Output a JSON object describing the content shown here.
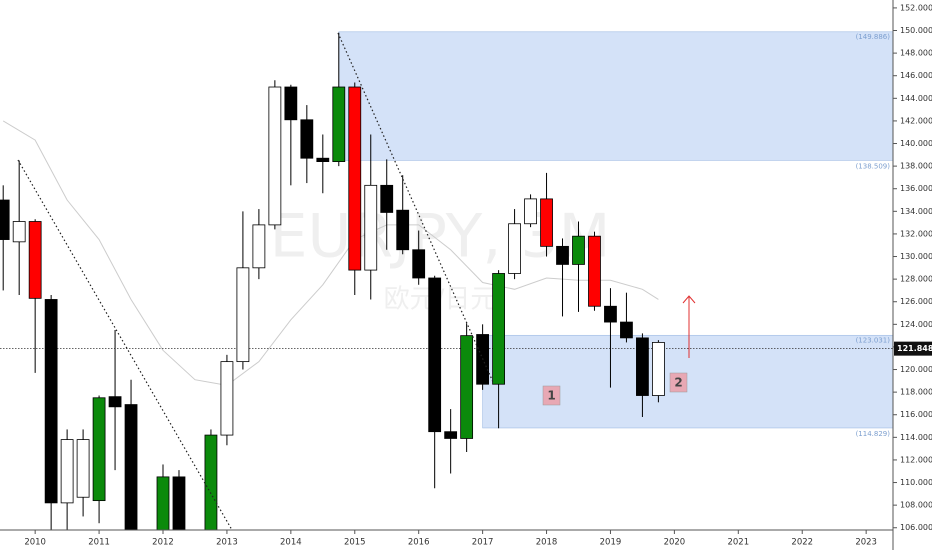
{
  "chart_data": {
    "type": "candlestick",
    "title": "EURJPY, 3M",
    "subtitle": "欧元/日元",
    "annotations": [
      "1",
      "2"
    ],
    "x": [
      2009.5,
      2009.75,
      2010.0,
      2010.25,
      2010.5,
      2010.75,
      2011.0,
      2011.25,
      2011.5,
      2012.0,
      2012.25,
      2012.75,
      2013.0,
      2013.25,
      2013.5,
      2013.75,
      2014.0,
      2014.25,
      2014.5,
      2014.75,
      2015.0,
      2015.25,
      2015.5,
      2015.75,
      2016.0,
      2016.25,
      2016.5,
      2016.75,
      2017.0,
      2017.25,
      2017.5,
      2017.75,
      2018.0,
      2018.25,
      2018.5,
      2018.75,
      2019.0,
      2019.25,
      2019.5,
      2019.75
    ],
    "open": [
      135.0,
      131.3,
      133.1,
      126.2,
      108.2,
      108.7,
      108.4,
      117.6,
      116.9,
      105.0,
      110.5,
      105.0,
      114.2,
      120.7,
      129.0,
      132.8,
      145.0,
      142.1,
      138.7,
      138.4,
      145.0,
      128.8,
      136.3,
      134.1,
      130.6,
      128.1,
      114.5,
      113.9,
      123.1,
      118.7,
      128.5,
      132.9,
      135.1,
      130.9,
      129.3,
      131.8,
      125.6,
      124.2,
      122.8,
      117.7
    ],
    "high": [
      136.3,
      138.5,
      133.3,
      126.6,
      114.7,
      114.7,
      117.7,
      123.5,
      119.1,
      111.6,
      111.1,
      114.7,
      121.3,
      134.0,
      134.2,
      145.6,
      145.2,
      143.4,
      140.8,
      149.8,
      145.4,
      140.8,
      138.6,
      137.2,
      132.3,
      128.3,
      116.5,
      124.1,
      124.0,
      128.8,
      134.2,
      135.5,
      137.4,
      131.6,
      133.1,
      132.2,
      127.2,
      126.8,
      123.2,
      122.6
    ],
    "low": [
      127.0,
      126.6,
      119.7,
      105.5,
      105.0,
      107.0,
      106.4,
      111.1,
      104.0,
      104.0,
      104.0,
      104.0,
      113.3,
      120.0,
      128.0,
      132.4,
      136.3,
      136.5,
      135.6,
      138.0,
      126.6,
      126.2,
      130.6,
      130.2,
      127.5,
      109.5,
      110.8,
      112.7,
      118.2,
      114.8,
      128.0,
      132.6,
      130.0,
      124.7,
      125.1,
      125.2,
      118.4,
      122.4,
      115.8,
      117.1
    ],
    "close": [
      131.5,
      133.1,
      126.3,
      108.2,
      113.8,
      113.8,
      117.5,
      116.7,
      105.0,
      110.5,
      105.0,
      114.2,
      120.7,
      129.0,
      132.8,
      145.0,
      142.1,
      138.7,
      138.4,
      145.0,
      128.8,
      136.3,
      133.9,
      130.6,
      128.1,
      114.5,
      113.9,
      123.0,
      118.7,
      128.5,
      132.9,
      135.1,
      130.9,
      129.3,
      131.8,
      125.6,
      124.2,
      122.8,
      117.7,
      122.4
    ],
    "colors": [
      "#000000",
      "#ffffff",
      "#ff0000",
      "#000000",
      "#ffffff",
      "#ffffff",
      "#0b8a0b",
      "#000000",
      "#000000",
      "#0b8a0b",
      "#000000",
      "#0b8a0b",
      "#ffffff",
      "#ffffff",
      "#ffffff",
      "#ffffff",
      "#000000",
      "#000000",
      "#000000",
      "#0b8a0b",
      "#ff0000",
      "#ffffff",
      "#000000",
      "#000000",
      "#000000",
      "#000000",
      "#000000",
      "#0b8a0b",
      "#000000",
      "#0b8a0b",
      "#ffffff",
      "#ffffff",
      "#ff0000",
      "#000000",
      "#0b8a0b",
      "#ff0000",
      "#000000",
      "#000000",
      "#000000",
      "#ffffff"
    ],
    "ma": {
      "color": "#cccccc",
      "x": [
        2009.5,
        2010.0,
        2010.5,
        2011.0,
        2011.5,
        2012.0,
        2012.5,
        2013.0,
        2013.5,
        2014.0,
        2014.5,
        2015.0,
        2015.5,
        2016.0,
        2016.5,
        2017.0,
        2017.5,
        2018.0,
        2018.5,
        2019.0,
        2019.5,
        2019.75
      ],
      "values": [
        142.0,
        140.3,
        135.0,
        131.5,
        126.2,
        121.7,
        119.1,
        118.6,
        120.7,
        124.4,
        127.5,
        131.5,
        132.8,
        132.8,
        130.6,
        127.7,
        127.1,
        128.1,
        127.9,
        127.9,
        127.1,
        126.2
      ]
    },
    "zones": [
      {
        "top": 149.886,
        "bottom": 138.509,
        "start": 2014.75,
        "top_label": "(149.886)",
        "bottom_label": "(138.509)"
      },
      {
        "top": 123.031,
        "bottom": 114.829,
        "start": 2017.0,
        "top_label": "(123.031)",
        "bottom_label": "(114.829)"
      }
    ],
    "zone_color": "#d4e2f8",
    "zone_edge": "#9fbbe3",
    "last_price": 121.848,
    "xlim": [
      2009.45,
      2023.42
    ],
    "xticks": [
      2010,
      2011,
      2012,
      2013,
      2014,
      2015,
      2016,
      2017,
      2018,
      2019,
      2020,
      2021,
      2022,
      2023
    ],
    "ylim": [
      105.8,
      152.7
    ],
    "yticks": [
      {
        "value": 106,
        "label": "106.000"
      },
      {
        "value": 108,
        "label": "108.000"
      },
      {
        "value": 110,
        "label": "110.000"
      },
      {
        "value": 112,
        "label": "112.000"
      },
      {
        "value": 114,
        "label": "114.000"
      },
      {
        "value": 116,
        "label": "116.000"
      },
      {
        "value": 118,
        "label": "118.000"
      },
      {
        "value": 120,
        "label": "120.000"
      },
      {
        "value": 122,
        "label": "122.000"
      },
      {
        "value": 124,
        "label": "124.000"
      },
      {
        "value": 126,
        "label": "126.000"
      },
      {
        "value": 128,
        "label": "128.000"
      },
      {
        "value": 130,
        "label": "130.000"
      },
      {
        "value": 132,
        "label": "132.000"
      },
      {
        "value": 134,
        "label": "134.000"
      },
      {
        "value": 136,
        "label": "136.000"
      },
      {
        "value": 138,
        "label": "138.000"
      },
      {
        "value": 140,
        "label": "140.000"
      },
      {
        "value": 142,
        "label": "142.000"
      },
      {
        "value": 144,
        "label": "144.000"
      },
      {
        "value": 146,
        "label": "146.000"
      },
      {
        "value": 148,
        "label": "148.000"
      },
      {
        "value": 150,
        "label": "150.000"
      },
      {
        "value": 152,
        "label": "152.000"
      }
    ]
  }
}
